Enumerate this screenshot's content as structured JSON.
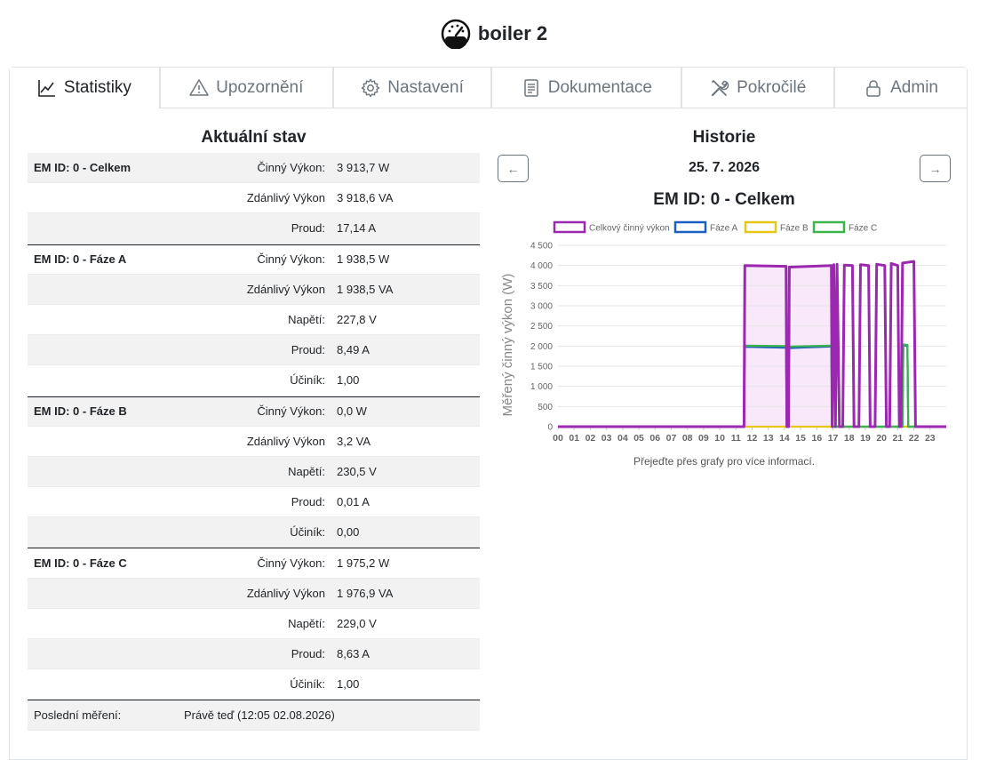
{
  "header": {
    "title": "boiler 2"
  },
  "tabs": [
    {
      "label": "Statistiky",
      "icon": "chart-line-icon",
      "active": true
    },
    {
      "label": "Upozornění",
      "icon": "warning-icon",
      "active": false
    },
    {
      "label": "Nastavení",
      "icon": "gear-icon",
      "active": false
    },
    {
      "label": "Dokumentace",
      "icon": "document-icon",
      "active": false
    },
    {
      "label": "Pokročilé",
      "icon": "tools-icon",
      "active": false
    },
    {
      "label": "Admin",
      "icon": "lock-icon",
      "active": false
    }
  ],
  "status": {
    "title": "Aktuální stav",
    "rows": [
      {
        "group": "EM ID: 0 - Celkem",
        "label": "Činný Výkon:",
        "value": "3 913,7 W"
      },
      {
        "group": "",
        "label": "Zdánlivý Výkon",
        "value": "3 918,6 VA"
      },
      {
        "group": "",
        "label": "Proud:",
        "value": "17,14 A"
      },
      {
        "group": "EM ID: 0 - Fáze A",
        "label": "Činný Výkon:",
        "value": "1 938,5 W"
      },
      {
        "group": "",
        "label": "Zdánlivý Výkon",
        "value": "1 938,5 VA"
      },
      {
        "group": "",
        "label": "Napětí:",
        "value": "227,8 V"
      },
      {
        "group": "",
        "label": "Proud:",
        "value": "8,49 A"
      },
      {
        "group": "",
        "label": "Účiník:",
        "value": "1,00"
      },
      {
        "group": "EM ID: 0 - Fáze B",
        "label": "Činný Výkon:",
        "value": "0,0 W"
      },
      {
        "group": "",
        "label": "Zdánlivý Výkon",
        "value": "3,2 VA"
      },
      {
        "group": "",
        "label": "Napětí:",
        "value": "230,5 V"
      },
      {
        "group": "",
        "label": "Proud:",
        "value": "0,01 A"
      },
      {
        "group": "",
        "label": "Účiník:",
        "value": "0,00"
      },
      {
        "group": "EM ID: 0 - Fáze C",
        "label": "Činný Výkon:",
        "value": "1 975,2 W"
      },
      {
        "group": "",
        "label": "Zdánlivý Výkon",
        "value": "1 976,9 VA"
      },
      {
        "group": "",
        "label": "Napětí:",
        "value": "229,0 V"
      },
      {
        "group": "",
        "label": "Proud:",
        "value": "8,63 A"
      },
      {
        "group": "",
        "label": "Účiník:",
        "value": "1,00"
      }
    ],
    "last_label": "Poslední měření:",
    "last_value": "Právě teď (12:05 02.08.2026)"
  },
  "history": {
    "title": "Historie",
    "date": "25. 7. 2026",
    "prev_label": "←",
    "next_label": "→",
    "hint": "Přejeďte přes grafy pro více informací."
  },
  "chart_data": {
    "type": "line",
    "title": "EM ID: 0 - Celkem",
    "ylabel": "Měřený činný výkon (W)",
    "xlabel": "",
    "ylim": [
      0,
      4500
    ],
    "xlim": [
      0,
      24
    ],
    "yticks": [
      0,
      500,
      1000,
      1500,
      2000,
      2500,
      3000,
      3500,
      4000,
      4500
    ],
    "ytick_labels": [
      "0",
      "500",
      "1 000",
      "1 500",
      "2 000",
      "2 500",
      "3 000",
      "3 500",
      "4 000",
      "4 500"
    ],
    "xtick_labels": [
      "00",
      "01",
      "02",
      "03",
      "04",
      "05",
      "06",
      "07",
      "08",
      "09",
      "10",
      "11",
      "12",
      "13",
      "14",
      "15",
      "16",
      "17",
      "18",
      "19",
      "20",
      "21",
      "22",
      "23"
    ],
    "legend": "top",
    "grid": true,
    "series": [
      {
        "name": "Celkový činný výkon",
        "color": "#9c27b0",
        "points": [
          [
            0,
            0
          ],
          [
            11.5,
            0
          ],
          [
            11.55,
            4000
          ],
          [
            14.1,
            3980
          ],
          [
            14.15,
            0
          ],
          [
            14.25,
            0
          ],
          [
            14.3,
            3960
          ],
          [
            16.9,
            4000
          ],
          [
            16.95,
            0
          ],
          [
            17.05,
            4020
          ],
          [
            17.15,
            0
          ],
          [
            17.25,
            4030
          ],
          [
            17.4,
            0
          ],
          [
            17.6,
            0
          ],
          [
            17.7,
            4010
          ],
          [
            18.2,
            4000
          ],
          [
            18.3,
            0
          ],
          [
            18.6,
            0
          ],
          [
            18.7,
            4020
          ],
          [
            19.2,
            4000
          ],
          [
            19.3,
            0
          ],
          [
            19.6,
            0
          ],
          [
            19.7,
            4030
          ],
          [
            20.2,
            4000
          ],
          [
            20.3,
            0
          ],
          [
            20.5,
            0
          ],
          [
            20.6,
            4050
          ],
          [
            21.0,
            4000
          ],
          [
            21.1,
            0
          ],
          [
            21.2,
            0
          ],
          [
            21.3,
            4060
          ],
          [
            22.0,
            4100
          ],
          [
            22.1,
            0
          ],
          [
            24,
            0
          ]
        ]
      },
      {
        "name": "Fáze A",
        "color": "#1f5fbf",
        "points": [
          [
            0,
            0
          ],
          [
            11.5,
            0
          ],
          [
            11.55,
            1980
          ],
          [
            14.1,
            1960
          ],
          [
            14.15,
            0
          ],
          [
            14.3,
            1950
          ],
          [
            16.9,
            1990
          ],
          [
            16.95,
            0
          ],
          [
            21.3,
            0
          ],
          [
            21.35,
            2020
          ],
          [
            21.6,
            2000
          ],
          [
            21.65,
            0
          ],
          [
            24,
            0
          ]
        ]
      },
      {
        "name": "Fáze B",
        "color": "#e6c619",
        "points": [
          [
            0,
            0
          ],
          [
            24,
            0
          ]
        ]
      },
      {
        "name": "Fáze C",
        "color": "#3cb44b",
        "points": [
          [
            0,
            0
          ],
          [
            11.5,
            0
          ],
          [
            11.55,
            2010
          ],
          [
            14.1,
            2000
          ],
          [
            14.15,
            0
          ],
          [
            14.3,
            1990
          ],
          [
            16.9,
            2010
          ],
          [
            16.95,
            0
          ],
          [
            21.3,
            0
          ],
          [
            21.35,
            2040
          ],
          [
            21.6,
            2030
          ],
          [
            21.65,
            0
          ],
          [
            24,
            0
          ]
        ]
      }
    ],
    "shaded_range": {
      "x": [
        11.5,
        17.1
      ],
      "color": "#f3d9f7"
    }
  },
  "colors": {
    "accent": "#9c27b0",
    "border": "#dee2e6",
    "muted": "#6c757d"
  }
}
